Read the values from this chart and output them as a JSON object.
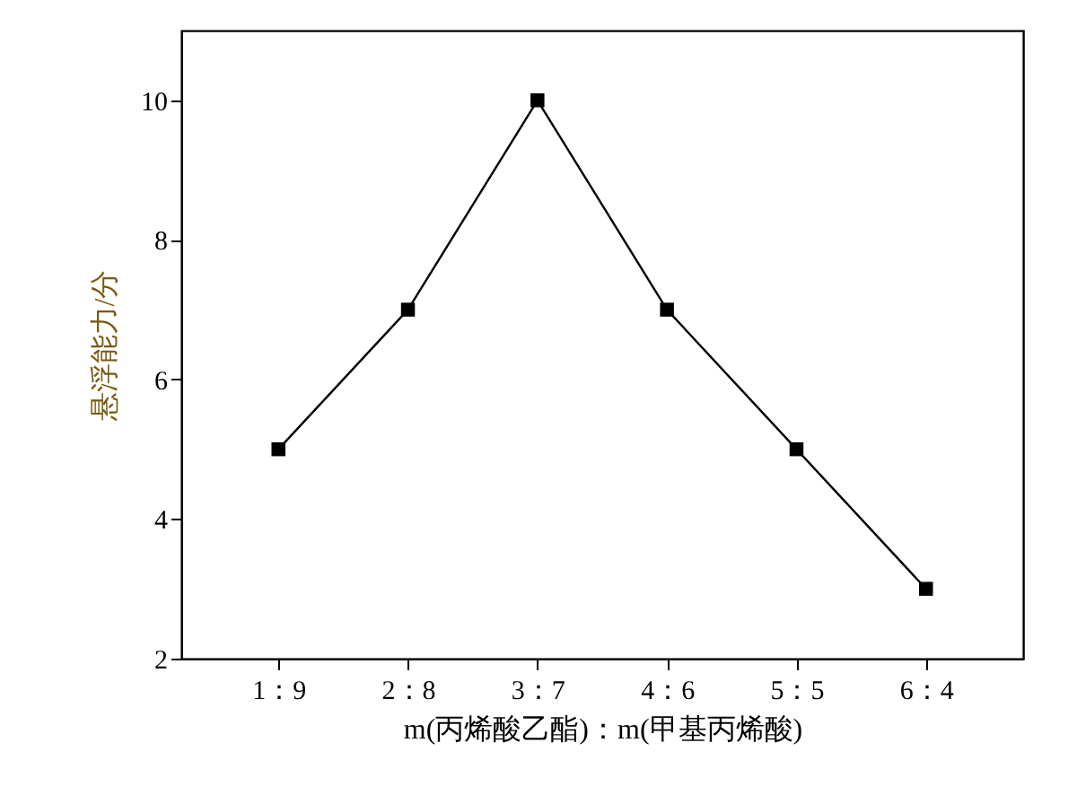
{
  "chart_data": {
    "type": "line",
    "categories": [
      "1：9",
      "2：8",
      "3：7",
      "4：6",
      "5：5",
      "6：4"
    ],
    "series": [
      {
        "color": "#000000",
        "values": [
          5,
          7,
          10,
          7,
          5,
          3
        ]
      }
    ],
    "xlabel": "m(丙烯酸乙酯)：m(甲基丙烯酸)",
    "ylabel": "悬浮能力/分",
    "ylim": [
      2,
      11
    ],
    "yticks": [
      2,
      4,
      6,
      8,
      10
    ],
    "marker": "square",
    "line_style": "solid"
  }
}
